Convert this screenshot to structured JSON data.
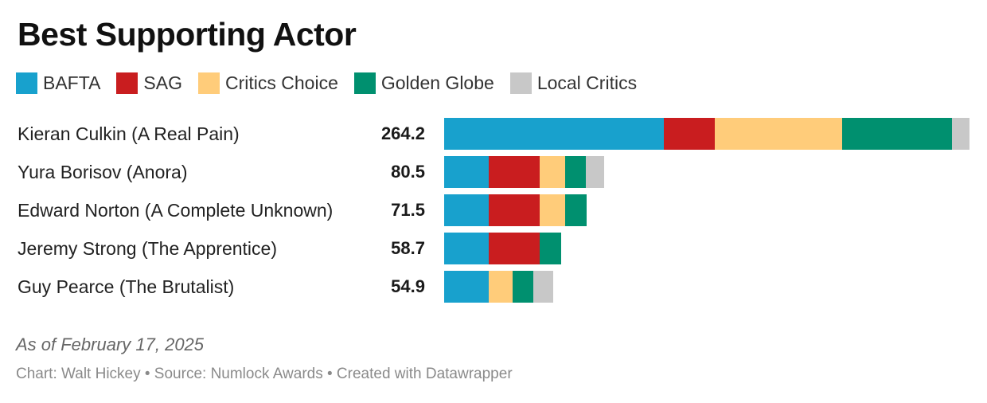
{
  "title": "Best Supporting Actor",
  "note": "As of February 17, 2025",
  "credits": "Chart: Walt Hickey • Source: Numlock Awards • Created with Datawrapper",
  "chart_data": {
    "type": "bar",
    "orientation": "horizontal",
    "stacked": true,
    "title": "Best Supporting Actor",
    "legend_position": "top",
    "categories": [
      "Kieran Culkin (A Real Pain)",
      "Yura Borisov (Anora)",
      "Edward Norton (A Complete Unknown)",
      "Jeremy Strong (The Apprentice)",
      "Guy Pearce (The Brutalist)"
    ],
    "totals": [
      264.2,
      80.5,
      71.5,
      58.7,
      54.9
    ],
    "total_labels": [
      "264.2",
      "80.5",
      "71.5",
      "58.7",
      "54.9"
    ],
    "xlim": [
      0,
      264.2
    ],
    "series": [
      {
        "name": "BAFTA",
        "color": "#18a1cd",
        "values": [
          110.4,
          22.4,
          22.4,
          22.4,
          22.4
        ]
      },
      {
        "name": "SAG",
        "color": "#c91d1f",
        "values": [
          25.6,
          25.6,
          25.6,
          25.6,
          0
        ]
      },
      {
        "name": "Critics Choice",
        "color": "#ffcc7a",
        "values": [
          64.0,
          12.8,
          12.8,
          0,
          12.0
        ]
      },
      {
        "name": "Golden Globe",
        "color": "#00906f",
        "values": [
          55.2,
          10.4,
          10.7,
          10.7,
          10.5
        ]
      },
      {
        "name": "Local Critics",
        "color": "#c8c8c8",
        "values": [
          9.0,
          9.3,
          0,
          0,
          10.0
        ]
      }
    ]
  }
}
